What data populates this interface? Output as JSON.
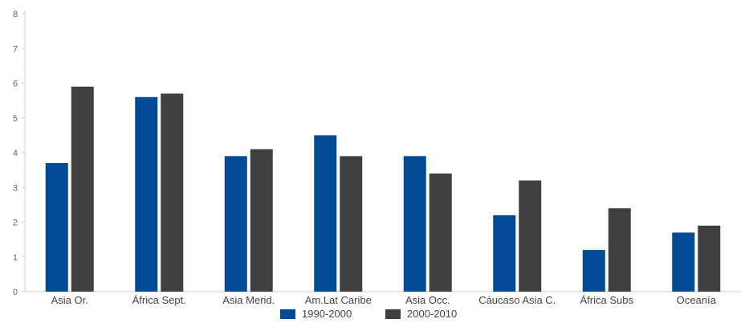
{
  "chart_data": {
    "type": "bar",
    "categories": [
      "Asia Or.",
      "África Sept.",
      "Asia Merid.",
      "Am.Lat Caribe",
      "Asia Occ.",
      "Cáucaso Asia C.",
      "África Subs",
      "Oceanía"
    ],
    "series": [
      {
        "name": "1990-2000",
        "color": "#004a96",
        "values": [
          3.7,
          5.6,
          3.9,
          4.5,
          3.9,
          2.2,
          1.2,
          1.7
        ]
      },
      {
        "name": "2000-2010",
        "color": "#404040",
        "values": [
          5.9,
          5.7,
          4.1,
          3.9,
          3.4,
          3.2,
          2.4,
          1.9
        ]
      }
    ],
    "ylim": [
      0,
      8
    ],
    "yticks": [
      "0",
      "1",
      "2",
      "3",
      "4",
      "5",
      "6",
      "7",
      "8"
    ],
    "title": "",
    "xlabel": "",
    "ylabel": "",
    "grid": false,
    "legend_position": "bottom-center"
  }
}
